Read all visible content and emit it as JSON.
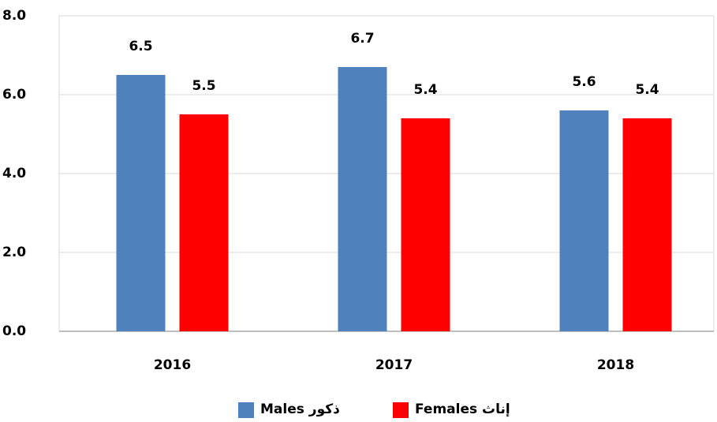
{
  "chart_data": {
    "type": "bar",
    "categories": [
      "2016",
      "2017",
      "2018"
    ],
    "series": [
      {
        "name": "Males ذكور",
        "color": "#4f81bd",
        "values": [
          6.5,
          6.7,
          5.6
        ]
      },
      {
        "name": "Females إناث",
        "color": "#ff0000",
        "values": [
          5.5,
          5.4,
          5.4
        ]
      }
    ],
    "ylim": [
      0,
      8
    ],
    "yticks": [
      {
        "value": 0,
        "label": "0.0"
      },
      {
        "value": 2,
        "label": "2.0"
      },
      {
        "value": 4,
        "label": "4.0"
      },
      {
        "value": 6,
        "label": "6.0"
      },
      {
        "value": 8,
        "label": "8.0"
      }
    ],
    "grid": true,
    "legend": "bottom"
  }
}
